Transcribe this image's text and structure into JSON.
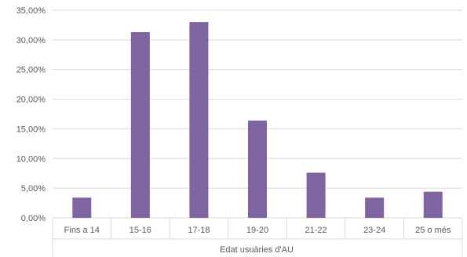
{
  "chart_data": {
    "type": "bar",
    "categories": [
      "Fins a 14",
      "15-16",
      "17-18",
      "19-20",
      "21-22",
      "23-24",
      "25 o més"
    ],
    "values": [
      3.4,
      31.3,
      33.0,
      16.4,
      7.6,
      3.4,
      4.4
    ],
    "xlabel": "Edat usuàries d'AU",
    "ylim": [
      0,
      35
    ],
    "yticks": [
      0,
      5,
      10,
      15,
      20,
      25,
      30,
      35
    ],
    "ytick_labels": [
      "0,00%",
      "5,00%",
      "10,00%",
      "15,00%",
      "20,00%",
      "25,00%",
      "30,00%",
      "35,00%"
    ],
    "grid": true,
    "bar_color": "#8064a2",
    "grid_color": "#d9d9d9"
  }
}
